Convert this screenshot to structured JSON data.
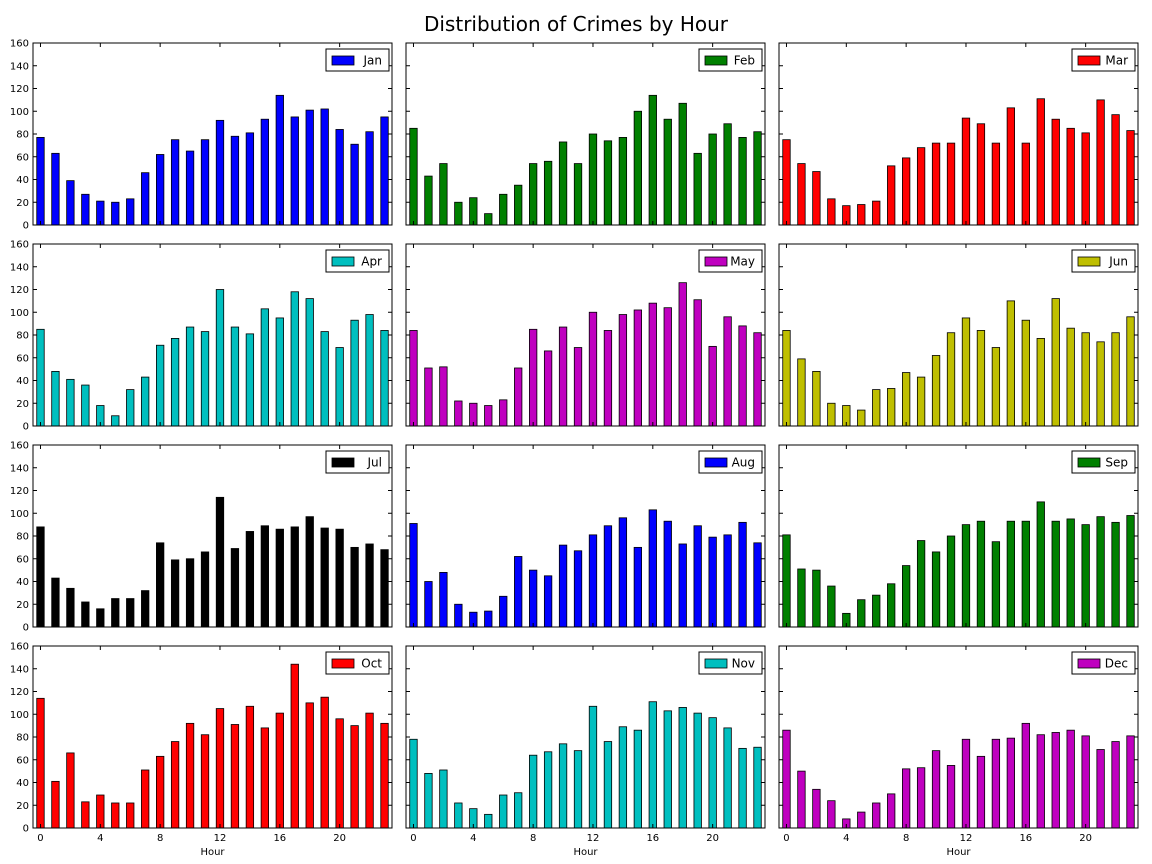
{
  "chart_data": {
    "type": "bar",
    "title": "Distribution of Crimes by Hour",
    "xlabel": "Hour",
    "ylim": [
      0,
      160
    ],
    "yticks": [
      0,
      20,
      40,
      60,
      80,
      100,
      120,
      140,
      160
    ],
    "xticks": [
      0,
      4,
      8,
      12,
      16,
      20
    ],
    "hours": [
      0,
      1,
      2,
      3,
      4,
      5,
      6,
      7,
      8,
      9,
      10,
      11,
      12,
      13,
      14,
      15,
      16,
      17,
      18,
      19,
      20,
      21,
      22,
      23
    ],
    "legend_position": "top-right",
    "panels": [
      {
        "name": "Jan",
        "color": "#0000ff",
        "values": [
          77,
          63,
          39,
          27,
          21,
          20,
          23,
          46,
          62,
          75,
          65,
          75,
          92,
          78,
          81,
          93,
          114,
          95,
          101,
          102,
          84,
          71,
          82,
          95
        ]
      },
      {
        "name": "Feb",
        "color": "#008000",
        "values": [
          85,
          43,
          54,
          20,
          24,
          10,
          27,
          35,
          54,
          56,
          73,
          54,
          80,
          74,
          77,
          100,
          114,
          93,
          107,
          63,
          80,
          89,
          77,
          82
        ]
      },
      {
        "name": "Mar",
        "color": "#ff0000",
        "values": [
          75,
          54,
          47,
          23,
          17,
          18,
          21,
          52,
          59,
          68,
          72,
          72,
          94,
          89,
          72,
          103,
          72,
          111,
          93,
          85,
          81,
          110,
          97,
          83
        ]
      },
      {
        "name": "Apr",
        "color": "#00bfbf",
        "values": [
          85,
          48,
          41,
          36,
          18,
          9,
          32,
          43,
          71,
          77,
          87,
          83,
          120,
          87,
          81,
          103,
          95,
          118,
          112,
          83,
          69,
          93,
          98,
          84
        ]
      },
      {
        "name": "May",
        "color": "#bf00bf",
        "values": [
          84,
          51,
          52,
          22,
          20,
          18,
          23,
          51,
          85,
          66,
          87,
          69,
          100,
          84,
          98,
          102,
          108,
          104,
          126,
          111,
          70,
          96,
          88,
          82
        ]
      },
      {
        "name": "Jun",
        "color": "#bfbf00",
        "values": [
          84,
          59,
          48,
          20,
          18,
          14,
          32,
          33,
          47,
          43,
          62,
          82,
          95,
          84,
          69,
          110,
          93,
          77,
          112,
          86,
          82,
          74,
          82,
          96
        ]
      },
      {
        "name": "Jul",
        "color": "#000000",
        "values": [
          88,
          43,
          34,
          22,
          16,
          25,
          25,
          32,
          74,
          59,
          60,
          66,
          114,
          69,
          84,
          89,
          86,
          88,
          97,
          87,
          86,
          70,
          73,
          68
        ]
      },
      {
        "name": "Aug",
        "color": "#0000ff",
        "values": [
          91,
          40,
          48,
          20,
          13,
          14,
          27,
          62,
          50,
          45,
          72,
          67,
          81,
          89,
          96,
          70,
          103,
          93,
          73,
          89,
          79,
          81,
          92,
          74
        ]
      },
      {
        "name": "Sep",
        "color": "#008000",
        "values": [
          81,
          51,
          50,
          36,
          12,
          24,
          28,
          38,
          54,
          76,
          66,
          80,
          90,
          93,
          75,
          93,
          93,
          110,
          93,
          95,
          90,
          97,
          92,
          98
        ]
      },
      {
        "name": "Oct",
        "color": "#ff0000",
        "values": [
          114,
          41,
          66,
          23,
          29,
          22,
          22,
          51,
          63,
          76,
          92,
          82,
          105,
          91,
          107,
          88,
          101,
          144,
          110,
          115,
          96,
          90,
          101,
          92
        ]
      },
      {
        "name": "Nov",
        "color": "#00bfbf",
        "values": [
          78,
          48,
          51,
          22,
          17,
          12,
          29,
          31,
          64,
          67,
          74,
          68,
          107,
          76,
          89,
          86,
          111,
          103,
          106,
          101,
          97,
          88,
          70,
          71
        ]
      },
      {
        "name": "Dec",
        "color": "#bf00bf",
        "values": [
          86,
          50,
          34,
          24,
          8,
          14,
          22,
          30,
          52,
          53,
          68,
          55,
          78,
          63,
          78,
          79,
          92,
          82,
          84,
          86,
          81,
          69,
          76,
          81
        ]
      }
    ]
  }
}
